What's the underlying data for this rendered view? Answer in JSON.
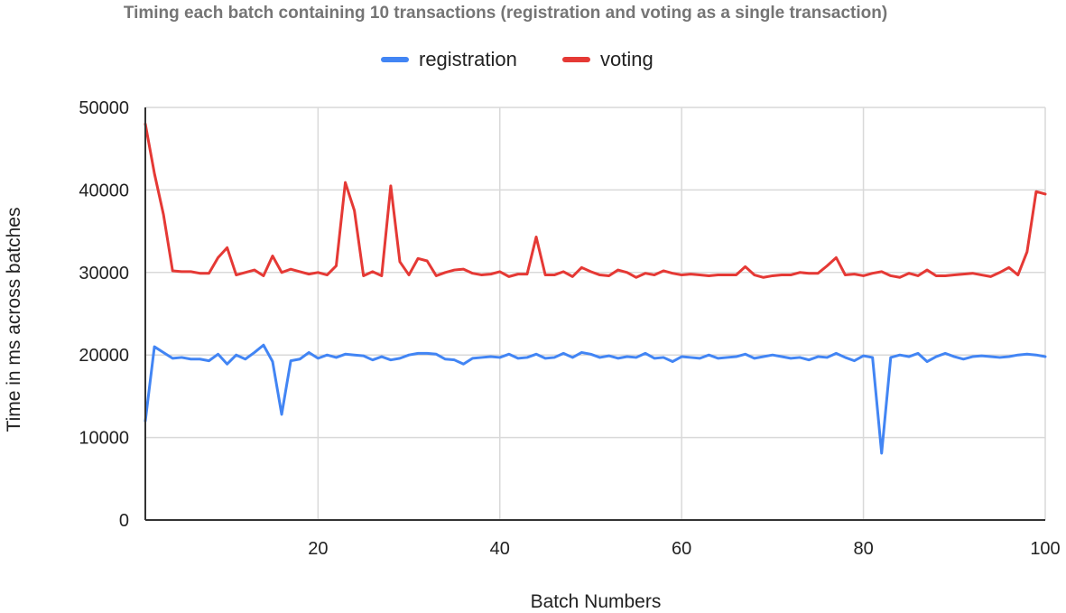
{
  "chart_data": {
    "type": "line",
    "title": "Timing each batch containing 10 transactions (registration and voting as a single transaction)",
    "xlabel": "Batch Numbers",
    "ylabel": "Time in ms across batches",
    "xlim": [
      1,
      100
    ],
    "ylim": [
      0,
      50000
    ],
    "xticks": [
      20,
      40,
      60,
      80,
      100
    ],
    "yticks": [
      0,
      10000,
      20000,
      30000,
      40000,
      50000
    ],
    "grid": true,
    "legend": "top-center",
    "series": [
      {
        "name": "registration",
        "color": "#4285f4",
        "x": [
          1,
          2,
          3,
          4,
          5,
          6,
          7,
          8,
          9,
          10,
          11,
          12,
          13,
          14,
          15,
          16,
          17,
          18,
          19,
          20,
          21,
          22,
          23,
          24,
          25,
          26,
          27,
          28,
          29,
          30,
          31,
          32,
          33,
          34,
          35,
          36,
          37,
          38,
          39,
          40,
          41,
          42,
          43,
          44,
          45,
          46,
          47,
          48,
          49,
          50,
          51,
          52,
          53,
          54,
          55,
          56,
          57,
          58,
          59,
          60,
          61,
          62,
          63,
          64,
          65,
          66,
          67,
          68,
          69,
          70,
          71,
          72,
          73,
          74,
          75,
          76,
          77,
          78,
          79,
          80,
          81,
          82,
          83,
          84,
          85,
          86,
          87,
          88,
          89,
          90,
          91,
          92,
          93,
          94,
          95,
          96,
          97,
          98,
          99,
          100
        ],
        "values": [
          12000,
          21000,
          20300,
          19600,
          19700,
          19500,
          19500,
          19300,
          20100,
          18900,
          20000,
          19500,
          20300,
          21200,
          19200,
          12800,
          19300,
          19500,
          20300,
          19600,
          20000,
          19700,
          20100,
          20000,
          19900,
          19400,
          19800,
          19400,
          19600,
          20000,
          20200,
          20200,
          20100,
          19500,
          19400,
          18900,
          19600,
          19700,
          19800,
          19700,
          20100,
          19600,
          19700,
          20100,
          19600,
          19700,
          20200,
          19700,
          20300,
          20100,
          19700,
          19900,
          19600,
          19800,
          19700,
          20200,
          19600,
          19700,
          19200,
          19800,
          19700,
          19600,
          20000,
          19600,
          19700,
          19800,
          20100,
          19600,
          19800,
          20000,
          19800,
          19600,
          19700,
          19400,
          19800,
          19700,
          20200,
          19700,
          19300,
          19900,
          19700,
          8100,
          19700,
          20000,
          19800,
          20200,
          19200,
          19800,
          20200,
          19800,
          19500,
          19800,
          19900,
          19800,
          19700,
          19800,
          20000,
          20100,
          20000,
          19800
        ]
      },
      {
        "name": "voting",
        "color": "#e53935",
        "x": [
          1,
          2,
          3,
          4,
          5,
          6,
          7,
          8,
          9,
          10,
          11,
          12,
          13,
          14,
          15,
          16,
          17,
          18,
          19,
          20,
          21,
          22,
          23,
          24,
          25,
          26,
          27,
          28,
          29,
          30,
          31,
          32,
          33,
          34,
          35,
          36,
          37,
          38,
          39,
          40,
          41,
          42,
          43,
          44,
          45,
          46,
          47,
          48,
          49,
          50,
          51,
          52,
          53,
          54,
          55,
          56,
          57,
          58,
          59,
          60,
          61,
          62,
          63,
          64,
          65,
          66,
          67,
          68,
          69,
          70,
          71,
          72,
          73,
          74,
          75,
          76,
          77,
          78,
          79,
          80,
          81,
          82,
          83,
          84,
          85,
          86,
          87,
          88,
          89,
          90,
          91,
          92,
          93,
          94,
          95,
          96,
          97,
          98,
          99,
          100
        ],
        "values": [
          48000,
          42000,
          37000,
          30200,
          30100,
          30100,
          29900,
          29900,
          31800,
          33000,
          29700,
          30000,
          30300,
          29600,
          32000,
          30000,
          30400,
          30100,
          29800,
          30000,
          29700,
          30800,
          40900,
          37500,
          29600,
          30100,
          29600,
          40500,
          31300,
          29700,
          31700,
          31400,
          29600,
          30000,
          30300,
          30400,
          29900,
          29700,
          29800,
          30100,
          29500,
          29800,
          29800,
          34300,
          29700,
          29700,
          30100,
          29500,
          30600,
          30100,
          29700,
          29600,
          30300,
          30000,
          29400,
          29900,
          29700,
          30200,
          29900,
          29700,
          29800,
          29700,
          29600,
          29700,
          29700,
          29700,
          30700,
          29700,
          29400,
          29600,
          29700,
          29700,
          30000,
          29900,
          29900,
          30800,
          31800,
          29700,
          29800,
          29600,
          29900,
          30100,
          29600,
          29400,
          29900,
          29600,
          30300,
          29600,
          29600,
          29700,
          29800,
          29900,
          29700,
          29500,
          30000,
          30600,
          29700,
          32500,
          39800,
          39500
        ]
      }
    ]
  }
}
